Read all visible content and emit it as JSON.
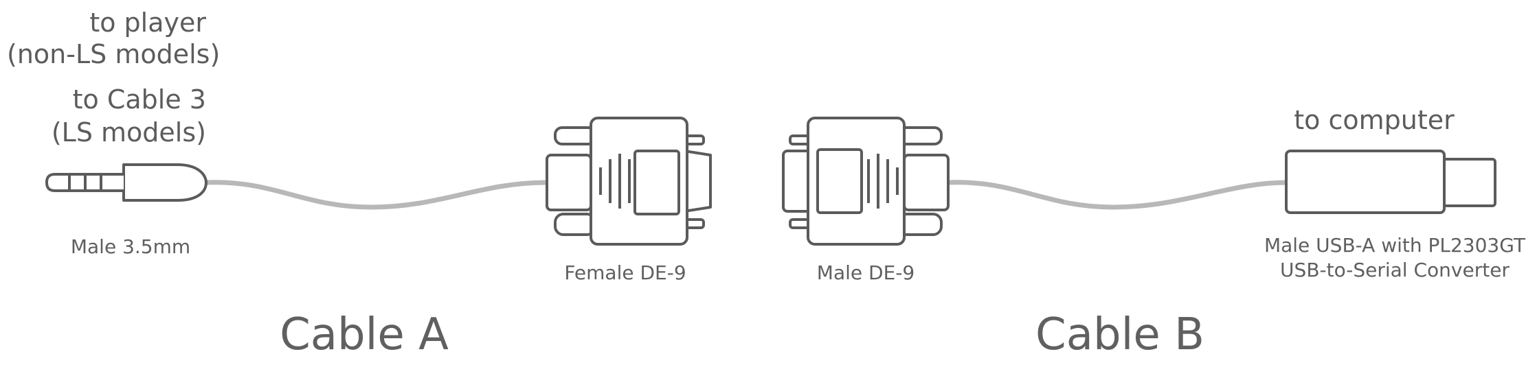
{
  "labels": {
    "to_player": "to player",
    "non_ls_models": "(non-LS models)",
    "to_cable_3": "to Cable 3",
    "ls_models": "(LS models)",
    "to_computer": "to computer",
    "male_35mm": "Male 3.5mm",
    "female_de9": "Female DE-9",
    "male_de9": "Male DE-9",
    "usb_line1": "Male USB-A with PL2303GT",
    "usb_line2": "USB-to-Serial Converter"
  },
  "cables": {
    "cable_a": "Cable A",
    "cable_b": "Cable B"
  },
  "colors": {
    "outline": "#5b5b5b",
    "wire": "#b8b8b8",
    "text": "#5c5c5c"
  }
}
